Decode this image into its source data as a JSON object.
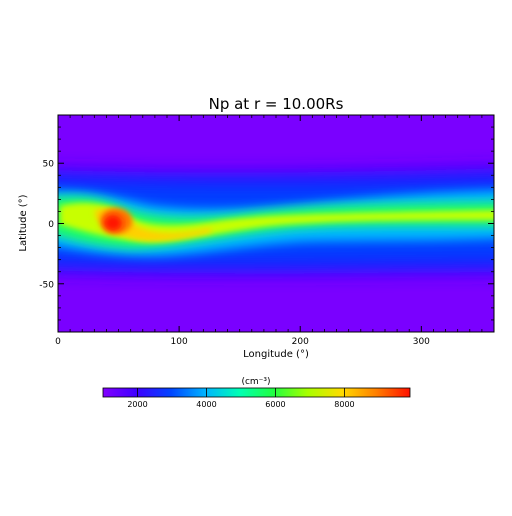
{
  "chart_data": {
    "type": "heatmap",
    "title": "Np at r = 10.00Rs",
    "xlabel": "Longitude (°)",
    "ylabel": "Latitude (°)",
    "xlim": [
      0,
      360
    ],
    "ylim": [
      -90,
      90
    ],
    "x_ticks": [
      0,
      100,
      200,
      300
    ],
    "y_ticks": [
      50,
      0,
      -50
    ],
    "colorbar": {
      "unit": "(cm⁻³)",
      "range": [
        1000,
        9900
      ],
      "ticks": [
        2000,
        4000,
        6000,
        8000
      ],
      "colormap": [
        "#8200ff",
        "#3c00ff",
        "#0046ff",
        "#00b4ff",
        "#00ffb4",
        "#20ff40",
        "#a8ff00",
        "#ffdc00",
        "#ff8000",
        "#ff1000"
      ]
    },
    "features": [
      {
        "lon": 10,
        "lat": 10,
        "np": 6500
      },
      {
        "lon": 35,
        "lat": 15,
        "np": 6500
      },
      {
        "lon": 45,
        "lat": 0,
        "np": 9500
      },
      {
        "lon": 70,
        "lat": -8,
        "np": 8200
      },
      {
        "lon": 100,
        "lat": -18,
        "np": 8000
      },
      {
        "lon": 150,
        "lat": -8,
        "np": 7500
      },
      {
        "lon": 200,
        "lat": -2,
        "np": 7500
      },
      {
        "lon": 260,
        "lat": 5,
        "np": 7500
      },
      {
        "lon": 300,
        "lat": 7,
        "np": 7800
      },
      {
        "lon": 350,
        "lat": 8,
        "np": 7800
      }
    ]
  }
}
